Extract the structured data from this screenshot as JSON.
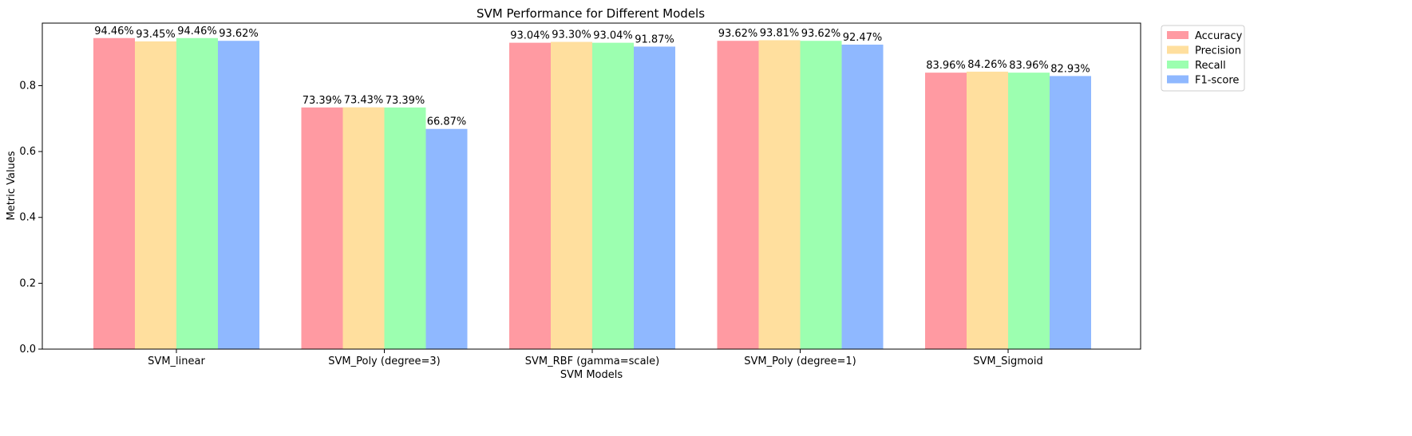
{
  "chart_data": {
    "type": "bar",
    "title": "SVM Performance for Different Models",
    "xlabel": "SVM Models",
    "ylabel": "Metric Values",
    "categories": [
      "SVM_linear",
      "SVM_Poly (degree=3)",
      "SVM_RBF (gamma=scale)",
      "SVM_Poly (degree=1)",
      "SVM_Sigmoid"
    ],
    "series": [
      {
        "name": "Accuracy",
        "color": "#ff9aa2",
        "values": [
          0.9446,
          0.7339,
          0.9304,
          0.9362,
          0.8396
        ],
        "labels": [
          "94.46%",
          "73.39%",
          "93.04%",
          "93.62%",
          "83.96%"
        ]
      },
      {
        "name": "Precision",
        "color": "#ffdf9e",
        "values": [
          0.9345,
          0.7343,
          0.933,
          0.9381,
          0.8426
        ],
        "labels": [
          "93.45%",
          "73.43%",
          "93.30%",
          "93.81%",
          "84.26%"
        ]
      },
      {
        "name": "Recall",
        "color": "#9cffb0",
        "values": [
          0.9446,
          0.7339,
          0.9304,
          0.9362,
          0.8396
        ],
        "labels": [
          "94.46%",
          "73.39%",
          "93.04%",
          "93.62%",
          "83.96%"
        ]
      },
      {
        "name": "F1-score",
        "color": "#8fb8ff",
        "values": [
          0.9362,
          0.6687,
          0.9187,
          0.9247,
          0.8293
        ],
        "labels": [
          "93.62%",
          "66.87%",
          "91.87%",
          "92.47%",
          "82.93%"
        ]
      }
    ],
    "ylim": [
      0,
      0.99
    ],
    "yticks": [
      0.0,
      0.2,
      0.4,
      0.6,
      0.8
    ],
    "ytick_labels": [
      "0.0",
      "0.2",
      "0.4",
      "0.6",
      "0.8"
    ],
    "grid": false,
    "legend_position": "outside-top-right"
  }
}
